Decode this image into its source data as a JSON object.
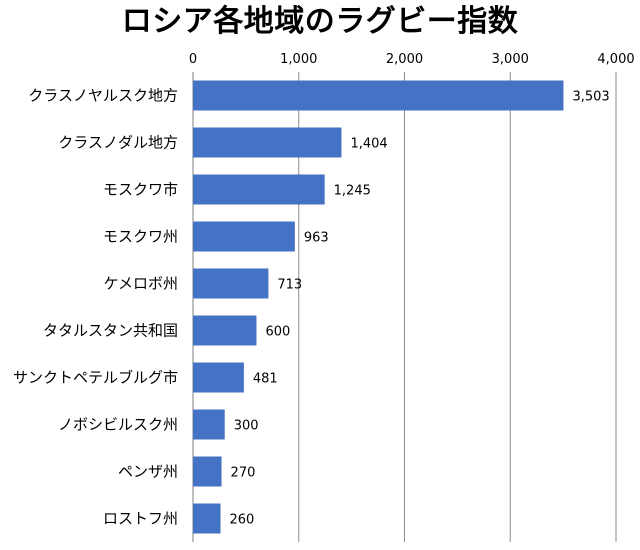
{
  "chart_data": {
    "type": "bar",
    "orientation": "horizontal",
    "title": "ロシア各地域のラグビー指数",
    "xlabel": "",
    "ylabel": "",
    "xlim": [
      0,
      4000
    ],
    "tick_values": [
      0,
      1000,
      2000,
      3000,
      4000
    ],
    "tick_labels": [
      "0",
      "1,000",
      "2,000",
      "3,000",
      "4,000"
    ],
    "tick_position": "top",
    "grid": true,
    "legend": "none",
    "bar_color": "#4472C4",
    "categories": [
      "クラスノヤルスク地方",
      "クラスノダル地方",
      "モスクワ市",
      "モスクワ州",
      "ケメロボ州",
      "タタルスタン共和国",
      "サンクトペテルブルグ市",
      "ノボシビルスク州",
      "ペンザ州",
      "ロストフ州"
    ],
    "values": [
      3503,
      1404,
      1245,
      963,
      713,
      600,
      481,
      300,
      270,
      260
    ],
    "value_labels": [
      "3,503",
      "1,404",
      "1,245",
      "963",
      "713",
      "600",
      "481",
      "300",
      "270",
      "260"
    ]
  }
}
